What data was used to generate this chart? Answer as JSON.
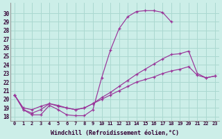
{
  "xlabel": "Windchill (Refroidissement éolien,°C)",
  "background_color": "#cceee8",
  "grid_color": "#aad8d0",
  "line_color": "#993399",
  "xlim": [
    -0.5,
    23.5
  ],
  "ylim": [
    17.5,
    31.2
  ],
  "xticks": [
    0,
    1,
    2,
    3,
    4,
    5,
    6,
    7,
    8,
    9,
    10,
    11,
    12,
    13,
    14,
    15,
    16,
    17,
    18,
    19,
    20,
    21,
    22,
    23
  ],
  "yticks": [
    18,
    19,
    20,
    21,
    22,
    23,
    24,
    25,
    26,
    27,
    28,
    29,
    30
  ],
  "curve1_x": [
    0,
    1,
    2,
    3,
    4,
    5,
    6,
    7,
    8,
    9,
    10,
    11,
    12,
    13,
    14,
    15,
    16,
    17,
    18
  ],
  "curve1_y": [
    20.5,
    18.8,
    18.2,
    18.2,
    19.3,
    18.8,
    18.2,
    18.1,
    18.1,
    18.8,
    22.5,
    25.7,
    28.2,
    29.6,
    30.2,
    30.3,
    30.3,
    30.1,
    29.0
  ],
  "curve2_x": [
    0,
    1,
    2,
    3,
    4,
    5,
    6,
    7,
    8,
    9,
    10,
    11,
    12,
    13,
    14,
    15,
    16,
    17,
    18,
    19,
    20,
    21,
    22,
    23
  ],
  "curve2_y": [
    20.5,
    18.8,
    18.4,
    18.8,
    19.5,
    19.2,
    19.0,
    18.8,
    19.0,
    19.5,
    20.0,
    20.5,
    21.0,
    21.5,
    22.0,
    22.3,
    22.6,
    23.0,
    23.3,
    23.5,
    23.8,
    22.8,
    22.5,
    22.7
  ],
  "curve3_x": [
    0,
    1,
    2,
    3,
    4,
    5,
    6,
    7,
    8,
    9,
    10,
    11,
    12,
    13,
    14,
    15,
    16,
    17,
    18,
    19,
    20,
    21,
    22,
    23
  ],
  "curve3_y": [
    20.5,
    19.0,
    18.8,
    19.2,
    19.5,
    19.3,
    19.0,
    18.8,
    19.0,
    19.5,
    20.2,
    20.8,
    21.5,
    22.2,
    22.9,
    23.5,
    24.1,
    24.7,
    25.2,
    25.3,
    25.6,
    23.0,
    22.5,
    22.7
  ]
}
